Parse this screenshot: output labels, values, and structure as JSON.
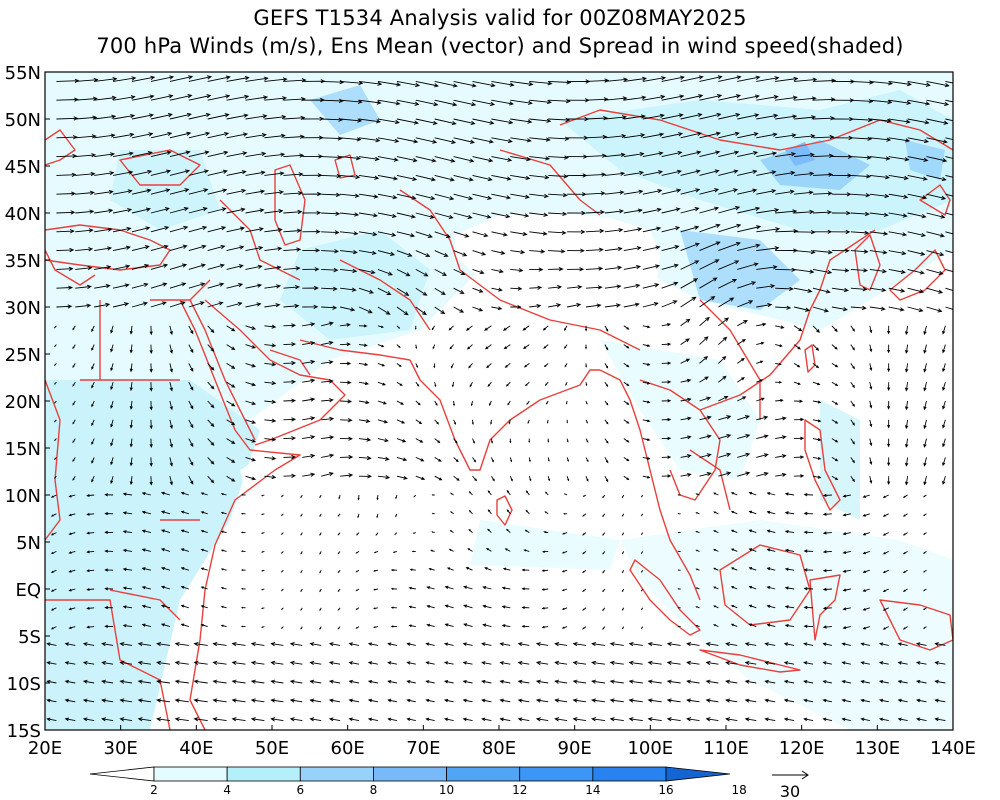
{
  "titles": {
    "line1": "GEFS T1534 Analysis valid for 00Z08MAY2025",
    "line2": "700 hPa Winds (m/s), Ens Mean (vector) and Spread in wind speed(shaded)"
  },
  "map": {
    "lat_labels": [
      "55N",
      "50N",
      "45N",
      "40N",
      "35N",
      "30N",
      "25N",
      "20N",
      "15N",
      "10N",
      "5N",
      "EQ",
      "5S",
      "10S",
      "15S"
    ],
    "lon_labels": [
      "20E",
      "30E",
      "40E",
      "50E",
      "60E",
      "70E",
      "80E",
      "90E",
      "100E",
      "110E",
      "120E",
      "130E",
      "140E"
    ],
    "lat_range": [
      -15,
      55
    ],
    "lon_range": [
      20,
      140
    ],
    "coastline_color": "#e8403c",
    "arrow_color": "#000000"
  },
  "colorbar": {
    "levels": [
      "2",
      "4",
      "6",
      "8",
      "10",
      "12",
      "14",
      "16",
      "18"
    ],
    "colors": [
      "#ffffff",
      "#e4fbff",
      "#b3f0fa",
      "#96d2fa",
      "#78b9fa",
      "#50a5f5",
      "#3c96f5",
      "#2882f0",
      "#1464d2"
    ]
  },
  "vector_key": {
    "value": "30"
  }
}
